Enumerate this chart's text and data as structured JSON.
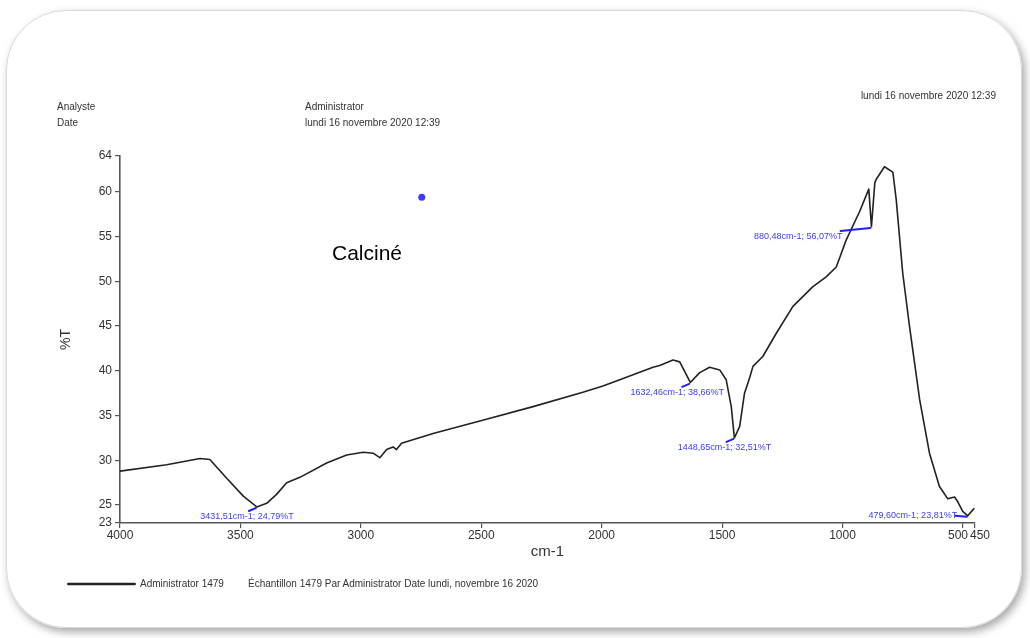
{
  "chart_data": {
    "type": "line",
    "xlabel": "cm-1",
    "ylabel": "%T",
    "xlim": [
      4000,
      450
    ],
    "xticks": [
      4000,
      3500,
      3000,
      2500,
      2000,
      1500,
      1000,
      500,
      450
    ],
    "ylim": [
      23,
      64
    ],
    "yticks": [
      23,
      25,
      30,
      35,
      40,
      45,
      50,
      55,
      60,
      64
    ],
    "legend": "bottom left",
    "series": [
      {
        "name": "Administrator 1479",
        "color": "#222222",
        "type": "line",
        "x": [
          4000,
          3806,
          3668,
          3627,
          3557,
          3488,
          3432,
          3391,
          3350,
          3308,
          3253,
          3142,
          3059,
          2990,
          2949,
          2921,
          2893,
          2866,
          2852,
          2831,
          2700,
          2506,
          2285,
          2078,
          1995,
          1925,
          1787,
          1759,
          1704,
          1676,
          1632,
          1593,
          1552,
          1510,
          1483,
          1462,
          1449,
          1427,
          1407,
          1386,
          1372,
          1331,
          1275,
          1206,
          1123,
          1068,
          1026,
          985,
          929,
          891,
          880,
          866,
          860,
          826,
          791,
          777,
          750,
          722,
          680,
          639,
          598,
          563,
          535,
          522,
          501,
          480,
          455
        ],
        "values": [
          28.8,
          29.5,
          30.2,
          30.1,
          28.0,
          26.0,
          24.8,
          25.2,
          26.2,
          27.5,
          28.1,
          29.7,
          30.6,
          30.9,
          30.8,
          30.3,
          31.2,
          31.5,
          31.2,
          31.9,
          33.0,
          34.4,
          36.0,
          37.6,
          38.3,
          39.0,
          40.4,
          40.6,
          41.2,
          41.0,
          38.7,
          39.8,
          40.4,
          40.1,
          39.0,
          36.0,
          32.5,
          33.8,
          37.5,
          39.2,
          40.5,
          41.6,
          44.2,
          47.2,
          49.4,
          50.5,
          51.6,
          54.6,
          57.8,
          60.3,
          56.1,
          61.0,
          61.4,
          62.8,
          62.2,
          59.1,
          50.9,
          45.0,
          36.8,
          30.8,
          27.1,
          25.7,
          25.9,
          25.4,
          24.3,
          23.8,
          24.6
        ]
      },
      {
        "color": "#3c3cff",
        "type": "scatter",
        "x": [
          2747
        ],
        "values": [
          59.4
        ]
      }
    ],
    "annotations": [
      "Analyste",
      "Administrator",
      "Date",
      "lundi 16 novembre 2020 12:39",
      "lundi 16 novembre 2020 12:39",
      "Calciné",
      "Échantillon 1479 Par Administrator Date lundi, novembre 16 2020",
      {
        "text": "3431,51cm-1; 24,79%T",
        "x": 3431.51,
        "y": 24.79
      },
      {
        "text": "1632,46cm-1; 38,66%T",
        "x": 1632.46,
        "y": 38.66
      },
      {
        "text": "1448,65cm-1; 32,51%T",
        "x": 1448.65,
        "y": 32.51
      },
      {
        "text": "880,48cm-1; 56,07%T",
        "x": 880.48,
        "y": 56.07
      },
      {
        "text": "479,60cm-1; 23,81%T",
        "x": 479.6,
        "y": 23.81
      }
    ]
  }
}
